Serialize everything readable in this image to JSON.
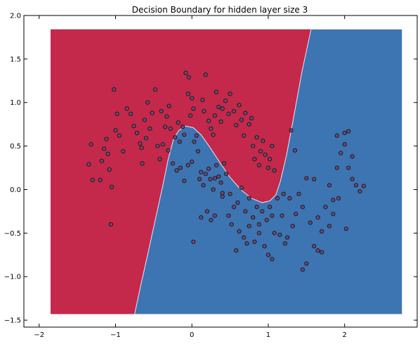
{
  "chart_data": {
    "type": "scatter",
    "title": "Decision Boundary for hidden layer size 3",
    "xlabel": "",
    "ylabel": "",
    "xlim": [
      -2.2,
      2.95
    ],
    "ylim": [
      -1.58,
      2.0
    ],
    "grid": false,
    "xticks": [
      -2,
      -1,
      0,
      1,
      2
    ],
    "yticks": [
      -1.5,
      -1.0,
      -0.5,
      0.0,
      0.5,
      1.0,
      1.5,
      2.0
    ],
    "xtick_labels": [
      "−2",
      "−1",
      "0",
      "1",
      "2"
    ],
    "ytick_labels": [
      "−1.5",
      "−1.0",
      "−0.5",
      "0.0",
      "0.5",
      "1.0",
      "1.5",
      "2.0"
    ],
    "region_extent": {
      "x": [
        -1.85,
        2.75
      ],
      "y": [
        -1.43,
        1.84
      ]
    },
    "class_colors": {
      "class0": "#C4284A",
      "class1": "#3D74B2"
    },
    "marker_edge_color": "#1a1a1a",
    "marker_fill_color": "#6E4A7A",
    "boundary": [
      [
        -0.75,
        -1.43
      ],
      [
        -0.67,
        -1.1
      ],
      [
        -0.58,
        -0.75
      ],
      [
        -0.48,
        -0.35
      ],
      [
        -0.38,
        0.05
      ],
      [
        -0.31,
        0.35
      ],
      [
        -0.24,
        0.58
      ],
      [
        -0.17,
        0.68
      ],
      [
        -0.08,
        0.73
      ],
      [
        0.02,
        0.71
      ],
      [
        0.12,
        0.63
      ],
      [
        0.24,
        0.48
      ],
      [
        0.36,
        0.32
      ],
      [
        0.5,
        0.14
      ],
      [
        0.64,
        0.0
      ],
      [
        0.78,
        -0.1
      ],
      [
        0.92,
        -0.15
      ],
      [
        1.02,
        -0.13
      ],
      [
        1.1,
        -0.06
      ],
      [
        1.16,
        0.1
      ],
      [
        1.24,
        0.4
      ],
      [
        1.33,
        0.82
      ],
      [
        1.44,
        1.35
      ],
      [
        1.56,
        1.84
      ]
    ],
    "points": [
      [
        -1.35,
        0.29
      ],
      [
        -1.32,
        0.52
      ],
      [
        -1.3,
        0.11
      ],
      [
        -1.2,
        0.11
      ],
      [
        -1.18,
        0.33
      ],
      [
        -1.15,
        0.47
      ],
      [
        -1.12,
        0.58
      ],
      [
        -1.1,
        0.41
      ],
      [
        -1.08,
        0.23
      ],
      [
        -1.06,
        -0.4
      ],
      [
        -1.05,
        0.03
      ],
      [
        -1.02,
        1.15
      ],
      [
        -1.0,
        0.68
      ],
      [
        -0.98,
        0.87
      ],
      [
        -0.95,
        0.62
      ],
      [
        -0.9,
        0.44
      ],
      [
        -0.85,
        0.93
      ],
      [
        -0.8,
        0.87
      ],
      [
        -0.76,
        0.73
      ],
      [
        -0.72,
        0.65
      ],
      [
        -0.68,
        0.53
      ],
      [
        -0.66,
        0.48
      ],
      [
        -0.65,
        0.3
      ],
      [
        -0.62,
        0.8
      ],
      [
        -0.6,
        0.59
      ],
      [
        -0.58,
        1.0
      ],
      [
        -0.55,
        0.7
      ],
      [
        -0.52,
        0.88
      ],
      [
        -0.48,
        1.15
      ],
      [
        -0.45,
        0.5
      ],
      [
        -0.42,
        0.35
      ],
      [
        -0.4,
        0.9
      ],
      [
        -0.38,
        0.52
      ],
      [
        -0.35,
        0.72
      ],
      [
        -0.33,
        0.84
      ],
      [
        -0.31,
        0.45
      ],
      [
        -0.3,
        0.96
      ],
      [
        -0.28,
        0.7
      ],
      [
        -0.25,
        0.3
      ],
      [
        -0.22,
        0.6
      ],
      [
        -0.18,
        0.77
      ],
      [
        -0.16,
        0.55
      ],
      [
        -0.12,
        0.72
      ],
      [
        -0.1,
        0.63
      ],
      [
        -0.08,
        1.34
      ],
      [
        -0.05,
        1.1
      ],
      [
        -0.04,
        1.29
      ],
      [
        -0.02,
        0.85
      ],
      [
        0.0,
        1.05
      ],
      [
        0.02,
        0.93
      ],
      [
        0.14,
        1.03
      ],
      [
        0.16,
        0.9
      ],
      [
        0.18,
        1.32
      ],
      [
        0.22,
        0.79
      ],
      [
        0.25,
        0.7
      ],
      [
        0.28,
        0.63
      ],
      [
        0.3,
        0.85
      ],
      [
        0.32,
        1.12
      ],
      [
        0.35,
        0.95
      ],
      [
        0.38,
        0.78
      ],
      [
        0.4,
        0.93
      ],
      [
        0.44,
        1.02
      ],
      [
        0.48,
        0.87
      ],
      [
        0.5,
        1.1
      ],
      [
        0.55,
        0.9
      ],
      [
        0.58,
        0.74
      ],
      [
        0.62,
        0.97
      ],
      [
        0.65,
        0.8
      ],
      [
        0.68,
        0.62
      ],
      [
        0.7,
        0.88
      ],
      [
        0.75,
        0.75
      ],
      [
        0.78,
        0.82
      ],
      [
        0.8,
        0.5
      ],
      [
        0.82,
        0.35
      ],
      [
        0.85,
        0.6
      ],
      [
        0.88,
        0.28
      ],
      [
        0.9,
        0.44
      ],
      [
        0.93,
        0.56
      ],
      [
        0.96,
        0.4
      ],
      [
        1.0,
        0.25
      ],
      [
        1.02,
        0.35
      ],
      [
        1.05,
        0.5
      ],
      [
        1.08,
        0.22
      ],
      [
        -0.2,
        0.22
      ],
      [
        -0.15,
        0.25
      ],
      [
        -0.1,
        0.1
      ],
      [
        -0.05,
        0.28
      ],
      [
        0.0,
        0.32
      ],
      [
        0.03,
        0.55
      ],
      [
        0.06,
        0.62
      ],
      [
        0.08,
        0.44
      ],
      [
        0.1,
        0.12
      ],
      [
        0.12,
        0.2
      ],
      [
        0.15,
        0.05
      ],
      [
        0.18,
        0.18
      ],
      [
        0.22,
        0.24
      ],
      [
        0.24,
        0.12
      ],
      [
        0.28,
        0.0
      ],
      [
        0.3,
        0.13
      ],
      [
        0.32,
        0.28
      ],
      [
        0.35,
        0.15
      ],
      [
        0.38,
        0.08
      ],
      [
        0.4,
        -0.04
      ],
      [
        0.42,
        0.3
      ],
      [
        0.45,
        0.18
      ],
      [
        0.5,
        -0.05
      ],
      [
        0.55,
        -0.2
      ],
      [
        0.6,
        -0.15
      ],
      [
        0.65,
        0.02
      ],
      [
        0.7,
        -0.25
      ],
      [
        0.75,
        -0.1
      ],
      [
        0.8,
        -0.32
      ],
      [
        0.85,
        -0.2
      ],
      [
        0.88,
        -0.4
      ],
      [
        0.92,
        -0.25
      ],
      [
        0.98,
        -0.35
      ],
      [
        1.02,
        -0.2
      ],
      [
        1.05,
        -0.3
      ],
      [
        1.08,
        -0.5
      ],
      [
        1.12,
        -0.1
      ],
      [
        1.15,
        -0.52
      ],
      [
        1.18,
        -0.3
      ],
      [
        1.2,
        -0.05
      ],
      [
        1.25,
        -0.55
      ],
      [
        1.28,
        -0.1
      ],
      [
        1.32,
        -0.42
      ],
      [
        1.36,
        -0.28
      ],
      [
        1.4,
        -0.05
      ],
      [
        1.45,
        -0.2
      ],
      [
        1.5,
        0.13
      ],
      [
        1.55,
        -0.38
      ],
      [
        1.6,
        0.12
      ],
      [
        1.65,
        -0.32
      ],
      [
        1.7,
        -0.48
      ],
      [
        1.75,
        -0.2
      ],
      [
        1.8,
        0.05
      ],
      [
        1.85,
        -0.12
      ],
      [
        1.9,
        0.25
      ],
      [
        1.95,
        0.42
      ],
      [
        2.0,
        0.52
      ],
      [
        2.05,
        0.25
      ],
      [
        2.1,
        0.12
      ],
      [
        2.15,
        0.05
      ],
      [
        2.2,
        -0.02
      ],
      [
        1.6,
        -0.65
      ],
      [
        1.65,
        -0.7
      ],
      [
        1.7,
        -0.72
      ],
      [
        1.5,
        -0.85
      ],
      [
        1.45,
        -0.92
      ],
      [
        2.0,
        0.65
      ],
      [
        2.05,
        0.67
      ],
      [
        1.9,
        0.62
      ],
      [
        1.3,
        0.68
      ],
      [
        1.35,
        0.45
      ],
      [
        2.1,
        0.38
      ],
      [
        0.02,
        -0.6
      ],
      [
        0.58,
        -0.7
      ],
      [
        0.95,
        -0.65
      ],
      [
        1.0,
        -0.75
      ],
      [
        1.05,
        -0.8
      ],
      [
        0.68,
        -0.55
      ],
      [
        0.72,
        -0.62
      ],
      [
        0.75,
        -0.42
      ],
      [
        0.82,
        -0.6
      ],
      [
        0.88,
        -0.5
      ],
      [
        1.22,
        -0.62
      ],
      [
        1.8,
        -0.42
      ],
      [
        1.85,
        -0.28
      ],
      [
        1.92,
        -0.1
      ],
      [
        2.25,
        0.04
      ],
      [
        2.02,
        -0.45
      ],
      [
        0.48,
        -0.3
      ],
      [
        0.52,
        -0.4
      ],
      [
        0.62,
        -0.48
      ],
      [
        0.4,
        -0.08
      ],
      [
        0.3,
        -0.3
      ],
      [
        0.25,
        -0.35
      ],
      [
        0.2,
        -0.25
      ],
      [
        0.12,
        -0.32
      ]
    ]
  }
}
